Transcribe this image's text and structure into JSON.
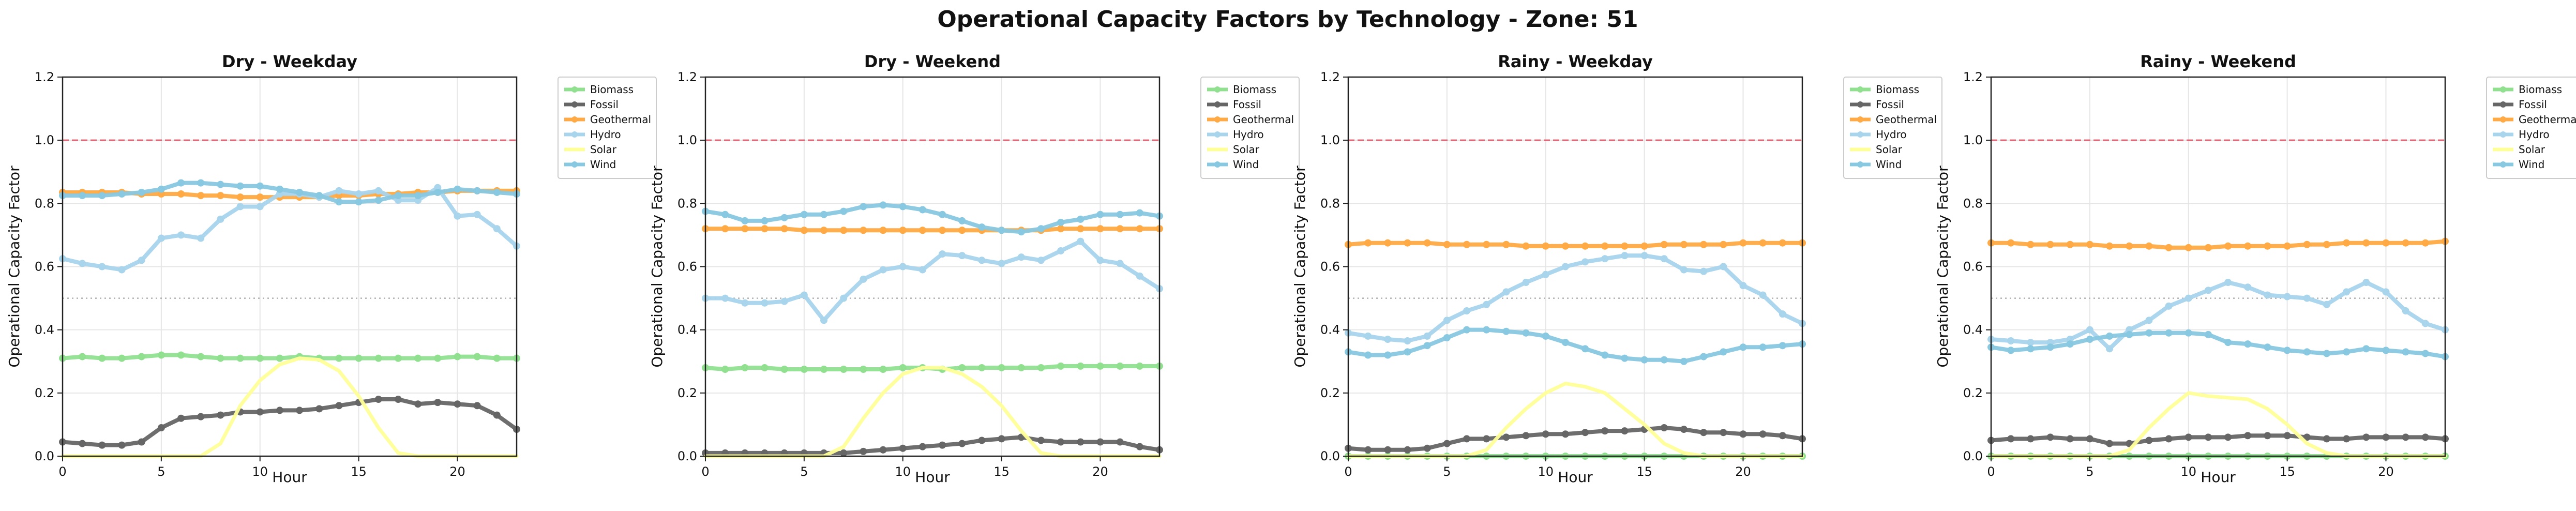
{
  "figure": {
    "title": "Operational Capacity Factors by Technology - Zone: 51"
  },
  "chart_data": [
    {
      "type": "line",
      "title": "Dry - Weekday",
      "xlabel": "Hour",
      "ylabel": "Operational Capacity Factor",
      "xlim": [
        0,
        23
      ],
      "ylim": [
        0,
        1.2
      ],
      "xticks": [
        "0",
        "5",
        "10",
        "15",
        "20"
      ],
      "yticks": [
        "0.0",
        "0.2",
        "0.4",
        "0.6",
        "0.8",
        "1.0",
        "1.2"
      ],
      "grid": true,
      "legend_position": "outside-right",
      "reference_lines": [
        {
          "y": 1.0,
          "style": "dashed",
          "color": "#e06070"
        },
        {
          "y": 0.5,
          "style": "dotted",
          "color": "#b0b0b0"
        }
      ],
      "x": [
        0,
        1,
        2,
        3,
        4,
        5,
        6,
        7,
        8,
        9,
        10,
        11,
        12,
        13,
        14,
        15,
        16,
        17,
        18,
        19,
        20,
        21,
        22,
        23
      ],
      "series": [
        {
          "name": "Biomass",
          "color": "#90e090",
          "values": [
            0.31,
            0.315,
            0.31,
            0.31,
            0.315,
            0.32,
            0.32,
            0.315,
            0.31,
            0.31,
            0.31,
            0.31,
            0.315,
            0.31,
            0.31,
            0.31,
            0.31,
            0.31,
            0.31,
            0.31,
            0.315,
            0.315,
            0.31,
            0.31
          ]
        },
        {
          "name": "Fossil",
          "color": "#666666",
          "values": [
            0.045,
            0.04,
            0.035,
            0.035,
            0.045,
            0.09,
            0.12,
            0.125,
            0.13,
            0.14,
            0.14,
            0.145,
            0.145,
            0.15,
            0.16,
            0.17,
            0.18,
            0.18,
            0.165,
            0.17,
            0.165,
            0.16,
            0.13,
            0.085
          ]
        },
        {
          "name": "Geothermal",
          "color": "#ffaa44",
          "values": [
            0.835,
            0.835,
            0.835,
            0.835,
            0.83,
            0.83,
            0.83,
            0.825,
            0.825,
            0.82,
            0.82,
            0.82,
            0.82,
            0.82,
            0.825,
            0.825,
            0.83,
            0.83,
            0.835,
            0.835,
            0.84,
            0.84,
            0.84,
            0.84
          ]
        },
        {
          "name": "Hydro",
          "color": "#a8d4ec",
          "values": [
            0.625,
            0.61,
            0.6,
            0.59,
            0.62,
            0.69,
            0.7,
            0.69,
            0.75,
            0.79,
            0.79,
            0.83,
            0.83,
            0.82,
            0.84,
            0.83,
            0.84,
            0.81,
            0.81,
            0.85,
            0.76,
            0.765,
            0.72,
            0.665
          ]
        },
        {
          "name": "Solar",
          "color": "#ffff99",
          "values": [
            0,
            0,
            0,
            0,
            0,
            0,
            0,
            0,
            0.04,
            0.16,
            0.24,
            0.29,
            0.31,
            0.305,
            0.27,
            0.19,
            0.09,
            0.01,
            0,
            0,
            0,
            0,
            0,
            0
          ]
        },
        {
          "name": "Wind",
          "color": "#88c8e0",
          "values": [
            0.825,
            0.825,
            0.825,
            0.83,
            0.835,
            0.845,
            0.865,
            0.865,
            0.86,
            0.855,
            0.855,
            0.845,
            0.835,
            0.825,
            0.805,
            0.805,
            0.81,
            0.825,
            0.825,
            0.835,
            0.845,
            0.84,
            0.835,
            0.83
          ]
        }
      ]
    },
    {
      "type": "line",
      "title": "Dry - Weekend",
      "xlabel": "Hour",
      "ylabel": "Operational Capacity Factor",
      "xlim": [
        0,
        23
      ],
      "ylim": [
        0,
        1.2
      ],
      "xticks": [
        "0",
        "5",
        "10",
        "15",
        "20"
      ],
      "yticks": [
        "0.0",
        "0.2",
        "0.4",
        "0.6",
        "0.8",
        "1.0",
        "1.2"
      ],
      "grid": true,
      "legend_position": "outside-right",
      "reference_lines": [
        {
          "y": 1.0,
          "style": "dashed",
          "color": "#e06070"
        },
        {
          "y": 0.5,
          "style": "dotted",
          "color": "#b0b0b0"
        }
      ],
      "x": [
        0,
        1,
        2,
        3,
        4,
        5,
        6,
        7,
        8,
        9,
        10,
        11,
        12,
        13,
        14,
        15,
        16,
        17,
        18,
        19,
        20,
        21,
        22,
        23
      ],
      "series": [
        {
          "name": "Biomass",
          "color": "#90e090",
          "values": [
            0.28,
            0.275,
            0.28,
            0.28,
            0.275,
            0.275,
            0.275,
            0.275,
            0.275,
            0.275,
            0.28,
            0.28,
            0.275,
            0.28,
            0.28,
            0.28,
            0.28,
            0.28,
            0.285,
            0.285,
            0.285,
            0.285,
            0.285,
            0.285
          ]
        },
        {
          "name": "Fossil",
          "color": "#666666",
          "values": [
            0.01,
            0.01,
            0.01,
            0.01,
            0.01,
            0.01,
            0.01,
            0.01,
            0.015,
            0.02,
            0.025,
            0.03,
            0.035,
            0.04,
            0.05,
            0.055,
            0.06,
            0.05,
            0.045,
            0.045,
            0.045,
            0.045,
            0.03,
            0.02
          ]
        },
        {
          "name": "Geothermal",
          "color": "#ffaa44",
          "values": [
            0.72,
            0.72,
            0.72,
            0.72,
            0.72,
            0.715,
            0.715,
            0.715,
            0.715,
            0.715,
            0.715,
            0.715,
            0.715,
            0.715,
            0.715,
            0.715,
            0.715,
            0.715,
            0.72,
            0.72,
            0.72,
            0.72,
            0.72,
            0.72
          ]
        },
        {
          "name": "Hydro",
          "color": "#a8d4ec",
          "values": [
            0.5,
            0.5,
            0.485,
            0.485,
            0.49,
            0.51,
            0.43,
            0.5,
            0.56,
            0.59,
            0.6,
            0.59,
            0.64,
            0.635,
            0.62,
            0.61,
            0.63,
            0.62,
            0.65,
            0.68,
            0.62,
            0.61,
            0.57,
            0.53
          ]
        },
        {
          "name": "Solar",
          "color": "#ffff99",
          "values": [
            0,
            0,
            0,
            0,
            0,
            0,
            0,
            0.03,
            0.12,
            0.2,
            0.26,
            0.28,
            0.28,
            0.26,
            0.22,
            0.16,
            0.08,
            0.01,
            0,
            0,
            0,
            0,
            0,
            0
          ]
        },
        {
          "name": "Wind",
          "color": "#88c8e0",
          "values": [
            0.775,
            0.765,
            0.745,
            0.745,
            0.755,
            0.765,
            0.765,
            0.775,
            0.79,
            0.795,
            0.79,
            0.78,
            0.765,
            0.745,
            0.725,
            0.715,
            0.71,
            0.72,
            0.74,
            0.75,
            0.765,
            0.765,
            0.77,
            0.76
          ]
        }
      ]
    },
    {
      "type": "line",
      "title": "Rainy - Weekday",
      "xlabel": "Hour",
      "ylabel": "Operational Capacity Factor",
      "xlim": [
        0,
        23
      ],
      "ylim": [
        0,
        1.2
      ],
      "xticks": [
        "0",
        "5",
        "10",
        "15",
        "20"
      ],
      "yticks": [
        "0.0",
        "0.2",
        "0.4",
        "0.6",
        "0.8",
        "1.0",
        "1.2"
      ],
      "grid": true,
      "legend_position": "outside-right",
      "reference_lines": [
        {
          "y": 1.0,
          "style": "dashed",
          "color": "#e06070"
        },
        {
          "y": 0.5,
          "style": "dotted",
          "color": "#b0b0b0"
        }
      ],
      "x": [
        0,
        1,
        2,
        3,
        4,
        5,
        6,
        7,
        8,
        9,
        10,
        11,
        12,
        13,
        14,
        15,
        16,
        17,
        18,
        19,
        20,
        21,
        22,
        23
      ],
      "series": [
        {
          "name": "Biomass",
          "color": "#90e090",
          "values": [
            0,
            0,
            0,
            0,
            0,
            0,
            0,
            0,
            0,
            0,
            0,
            0,
            0,
            0,
            0,
            0,
            0,
            0,
            0,
            0,
            0,
            0,
            0,
            0
          ]
        },
        {
          "name": "Fossil",
          "color": "#666666",
          "values": [
            0.025,
            0.02,
            0.02,
            0.02,
            0.025,
            0.04,
            0.055,
            0.055,
            0.06,
            0.065,
            0.07,
            0.07,
            0.075,
            0.08,
            0.08,
            0.085,
            0.09,
            0.085,
            0.075,
            0.075,
            0.07,
            0.07,
            0.065,
            0.055
          ]
        },
        {
          "name": "Geothermal",
          "color": "#ffaa44",
          "values": [
            0.67,
            0.675,
            0.675,
            0.675,
            0.675,
            0.67,
            0.67,
            0.67,
            0.67,
            0.665,
            0.665,
            0.665,
            0.665,
            0.665,
            0.665,
            0.665,
            0.67,
            0.67,
            0.67,
            0.67,
            0.675,
            0.675,
            0.675,
            0.675
          ]
        },
        {
          "name": "Hydro",
          "color": "#a8d4ec",
          "values": [
            0.39,
            0.38,
            0.37,
            0.365,
            0.38,
            0.43,
            0.46,
            0.48,
            0.52,
            0.55,
            0.575,
            0.6,
            0.615,
            0.625,
            0.635,
            0.635,
            0.625,
            0.59,
            0.585,
            0.6,
            0.54,
            0.51,
            0.45,
            0.42
          ]
        },
        {
          "name": "Solar",
          "color": "#ffff99",
          "values": [
            0,
            0,
            0,
            0,
            0,
            0,
            0,
            0.02,
            0.09,
            0.15,
            0.2,
            0.23,
            0.22,
            0.2,
            0.15,
            0.1,
            0.04,
            0.01,
            0,
            0,
            0,
            0,
            0,
            0
          ]
        },
        {
          "name": "Wind",
          "color": "#88c8e0",
          "values": [
            0.33,
            0.32,
            0.32,
            0.33,
            0.35,
            0.375,
            0.4,
            0.4,
            0.395,
            0.39,
            0.38,
            0.36,
            0.34,
            0.32,
            0.31,
            0.305,
            0.305,
            0.3,
            0.315,
            0.33,
            0.345,
            0.345,
            0.35,
            0.355
          ]
        }
      ]
    },
    {
      "type": "line",
      "title": "Rainy - Weekend",
      "xlabel": "Hour",
      "ylabel": "Operational Capacity Factor",
      "xlim": [
        0,
        23
      ],
      "ylim": [
        0,
        1.2
      ],
      "xticks": [
        "0",
        "5",
        "10",
        "15",
        "20"
      ],
      "yticks": [
        "0.0",
        "0.2",
        "0.4",
        "0.6",
        "0.8",
        "1.0",
        "1.2"
      ],
      "grid": true,
      "legend_position": "outside-right",
      "reference_lines": [
        {
          "y": 1.0,
          "style": "dashed",
          "color": "#e06070"
        },
        {
          "y": 0.5,
          "style": "dotted",
          "color": "#b0b0b0"
        }
      ],
      "x": [
        0,
        1,
        2,
        3,
        4,
        5,
        6,
        7,
        8,
        9,
        10,
        11,
        12,
        13,
        14,
        15,
        16,
        17,
        18,
        19,
        20,
        21,
        22,
        23
      ],
      "series": [
        {
          "name": "Biomass",
          "color": "#90e090",
          "values": [
            0,
            0,
            0,
            0,
            0,
            0,
            0,
            0,
            0,
            0,
            0,
            0,
            0,
            0,
            0,
            0,
            0,
            0,
            0,
            0,
            0,
            0,
            0,
            0
          ]
        },
        {
          "name": "Fossil",
          "color": "#666666",
          "values": [
            0.05,
            0.055,
            0.055,
            0.06,
            0.055,
            0.055,
            0.04,
            0.04,
            0.05,
            0.055,
            0.06,
            0.06,
            0.06,
            0.065,
            0.065,
            0.065,
            0.06,
            0.055,
            0.055,
            0.06,
            0.06,
            0.06,
            0.06,
            0.055
          ]
        },
        {
          "name": "Geothermal",
          "color": "#ffaa44",
          "values": [
            0.675,
            0.675,
            0.67,
            0.67,
            0.67,
            0.67,
            0.665,
            0.665,
            0.665,
            0.66,
            0.66,
            0.66,
            0.665,
            0.665,
            0.665,
            0.665,
            0.67,
            0.67,
            0.675,
            0.675,
            0.675,
            0.675,
            0.675,
            0.68
          ]
        },
        {
          "name": "Hydro",
          "color": "#a8d4ec",
          "values": [
            0.37,
            0.365,
            0.36,
            0.36,
            0.37,
            0.4,
            0.34,
            0.4,
            0.43,
            0.475,
            0.5,
            0.525,
            0.55,
            0.535,
            0.51,
            0.505,
            0.5,
            0.48,
            0.52,
            0.55,
            0.52,
            0.46,
            0.42,
            0.4
          ]
        },
        {
          "name": "Solar",
          "color": "#ffff99",
          "values": [
            0,
            0,
            0,
            0,
            0,
            0,
            0,
            0.02,
            0.09,
            0.15,
            0.2,
            0.19,
            0.185,
            0.18,
            0.15,
            0.1,
            0.04,
            0.01,
            0,
            0,
            0,
            0,
            0,
            0
          ]
        },
        {
          "name": "Wind",
          "color": "#88c8e0",
          "values": [
            0.345,
            0.335,
            0.34,
            0.345,
            0.355,
            0.37,
            0.38,
            0.385,
            0.39,
            0.39,
            0.39,
            0.385,
            0.36,
            0.355,
            0.345,
            0.335,
            0.33,
            0.325,
            0.33,
            0.34,
            0.335,
            0.33,
            0.325,
            0.315
          ]
        }
      ]
    }
  ]
}
